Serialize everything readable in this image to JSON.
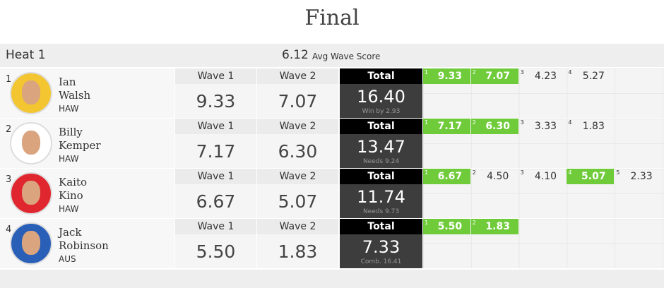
{
  "title": "Final",
  "heat": {
    "name": "Heat 1",
    "avg_score": "6.12",
    "avg_label": "Avg Wave Score"
  },
  "athletes": [
    {
      "rank": "1",
      "first": "Ian",
      "last": "Walsh",
      "country": "HAW",
      "wave1_label": "Wave 1",
      "wave2_label": "Wave 2",
      "wave1": "9.33",
      "wave2": "7.07",
      "total_label": "Total",
      "total": "16.40",
      "note": "Win by 2.93",
      "waves": [
        {
          "n": "1",
          "score": "9.33",
          "counted": true
        },
        {
          "n": "2",
          "score": "7.07",
          "counted": true
        },
        {
          "n": "3",
          "score": "4.23",
          "counted": false
        },
        {
          "n": "4",
          "score": "5.27",
          "counted": false
        }
      ]
    },
    {
      "rank": "2",
      "first": "Billy",
      "last": "Kemper",
      "country": "HAW",
      "wave1_label": "Wave 1",
      "wave2_label": "Wave 2",
      "wave1": "7.17",
      "wave2": "6.30",
      "total_label": "Total",
      "total": "13.47",
      "note": "Needs 9.24",
      "waves": [
        {
          "n": "1",
          "score": "7.17",
          "counted": true
        },
        {
          "n": "2",
          "score": "6.30",
          "counted": true
        },
        {
          "n": "3",
          "score": "3.33",
          "counted": false
        },
        {
          "n": "4",
          "score": "1.83",
          "counted": false
        }
      ]
    },
    {
      "rank": "3",
      "first": "Kaito",
      "last": "Kino",
      "country": "HAW",
      "wave1_label": "Wave 1",
      "wave2_label": "Wave 2",
      "wave1": "6.67",
      "wave2": "5.07",
      "total_label": "Total",
      "total": "11.74",
      "note": "Needs 9.73",
      "waves": [
        {
          "n": "1",
          "score": "6.67",
          "counted": true
        },
        {
          "n": "2",
          "score": "4.50",
          "counted": false
        },
        {
          "n": "3",
          "score": "4.10",
          "counted": false
        },
        {
          "n": "4",
          "score": "5.07",
          "counted": true
        },
        {
          "n": "5",
          "score": "2.33",
          "counted": false
        }
      ]
    },
    {
      "rank": "4",
      "first": "Jack",
      "last": "Robinson",
      "country": "AUS",
      "wave1_label": "Wave 1",
      "wave2_label": "Wave 2",
      "wave1": "5.50",
      "wave2": "1.83",
      "total_label": "Total",
      "total": "7.33",
      "note": "Comb. 16.41",
      "waves": [
        {
          "n": "1",
          "score": "5.50",
          "counted": true
        },
        {
          "n": "2",
          "score": "1.83",
          "counted": true
        }
      ]
    }
  ]
}
